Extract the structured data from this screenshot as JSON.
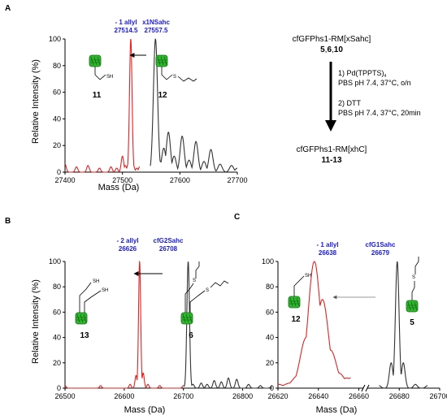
{
  "panels": {
    "A": {
      "label": "A",
      "ylabel": "Relative Intensity (%)",
      "xlabel": "Mass (Da)",
      "peaks": [
        {
          "name": "- 1 allyl",
          "mass": "27514.5",
          "compound": "11",
          "color": "#e52222"
        },
        {
          "name": "x1NSahc",
          "mass": "27557.5",
          "compound": "12",
          "color": "#1a1adc"
        }
      ],
      "sh_label": "SH",
      "s_label": "S"
    },
    "B": {
      "label": "B",
      "ylabel": "Relative Intensity (%)",
      "xlabel": "Mass (Da)",
      "peaks": [
        {
          "name": "- 2 allyl",
          "mass": "26626",
          "compound": "13"
        },
        {
          "name": "cfG2Sahc",
          "mass": "26708",
          "compound": "6"
        }
      ],
      "sh_label": "SH",
      "s_label": "S"
    },
    "C": {
      "label": "C",
      "xlabel": "Mass (Da)",
      "peaks": [
        {
          "name": "- 1 allyl",
          "mass": "26638",
          "compound": "12"
        },
        {
          "name": "cfG1Sahc",
          "mass": "26679",
          "compound": "5"
        }
      ],
      "sh_label": "SH",
      "s_label": "S"
    }
  },
  "scheme": {
    "start_name": "cfGFPhs1-RM[xSahc]",
    "start_num_a": "5",
    "start_num_sep1": ",",
    "start_num_b": "6",
    "start_num_sep2": ",",
    "start_num_c": "10",
    "step1_prefix": "1) Pd(TPPTS)",
    "step1_sub": "4",
    "step1_cond": "PBS pH 7.4, 37°C, o/n",
    "step2": "2) DTT",
    "step2_cond": "PBS pH 7.4, 37°C, 20min",
    "end_name": "cfGFPhs1-RM[xhC]",
    "end_num": "11-13"
  },
  "chart_data": [
    {
      "type": "line",
      "panel": "A",
      "xlabel": "Mass (Da)",
      "ylabel": "Relative Intensity (%)",
      "xlim": [
        27400,
        27700
      ],
      "ylim": [
        0,
        100
      ],
      "xticks": [
        27400,
        27500,
        27600,
        27700
      ],
      "yticks": [
        0,
        20,
        40,
        60,
        80,
        100
      ],
      "series": [
        {
          "color": "#e52222",
          "x": [
            27400,
            27420,
            27440,
            27460,
            27480,
            27490,
            27500,
            27505,
            27510,
            27514.5,
            27519,
            27525,
            27530
          ],
          "y": [
            6,
            4,
            5,
            3,
            4,
            3,
            12,
            5,
            6,
            100,
            5,
            3,
            4
          ]
        },
        {
          "color": "#333333",
          "x": [
            27548,
            27557.5,
            27566,
            27572,
            27580,
            27590,
            27604,
            27616,
            27628,
            27642,
            27654,
            27670,
            27690,
            27700
          ],
          "y": [
            5,
            100,
            8,
            18,
            30,
            12,
            27,
            9,
            23,
            8,
            17,
            6,
            5,
            3
          ]
        }
      ]
    },
    {
      "type": "line",
      "panel": "B",
      "xlabel": "Mass (Da)",
      "ylabel": "Relative Intensity (%)",
      "xlim": [
        26500,
        26850
      ],
      "ylim": [
        0,
        100
      ],
      "xticks": [
        26500,
        26600,
        26700,
        26800
      ],
      "yticks": [
        0,
        20,
        40,
        60,
        80,
        100
      ],
      "series": [
        {
          "color": "#e52222",
          "x": [
            26500,
            26560,
            26610,
            26620,
            26626,
            26632,
            26640,
            26660,
            26700
          ],
          "y": [
            2,
            2,
            3,
            10,
            100,
            12,
            3,
            2,
            2
          ]
        },
        {
          "color": "#333333",
          "x": [
            26700,
            26708,
            26716,
            26730,
            26740,
            26752,
            26764,
            26776,
            26790,
            26810,
            26830,
            26850
          ],
          "y": [
            2,
            100,
            3,
            4,
            3,
            6,
            5,
            8,
            7,
            3,
            2,
            2
          ]
        }
      ]
    },
    {
      "type": "line",
      "panel": "C",
      "xlabel": "Mass (Da)",
      "xlim": [
        26620,
        26700
      ],
      "ylim": [
        0,
        100
      ],
      "xticks": [
        26620,
        26640,
        26660,
        26680,
        26700
      ],
      "yticks": [
        0,
        20,
        40,
        60,
        80,
        100
      ],
      "axis_break": true,
      "series": [
        {
          "color": "#e52222",
          "x": [
            26620,
            26626,
            26630,
            26634,
            26638,
            26642,
            26646,
            26650,
            26654,
            26656
          ],
          "y": [
            3,
            4,
            10,
            40,
            100,
            70,
            30,
            12,
            8,
            8
          ]
        },
        {
          "color": "#333333",
          "x": [
            26670,
            26676,
            26679,
            26682,
            26688,
            26694
          ],
          "y": [
            2,
            20,
            100,
            20,
            3,
            2
          ]
        }
      ]
    }
  ]
}
